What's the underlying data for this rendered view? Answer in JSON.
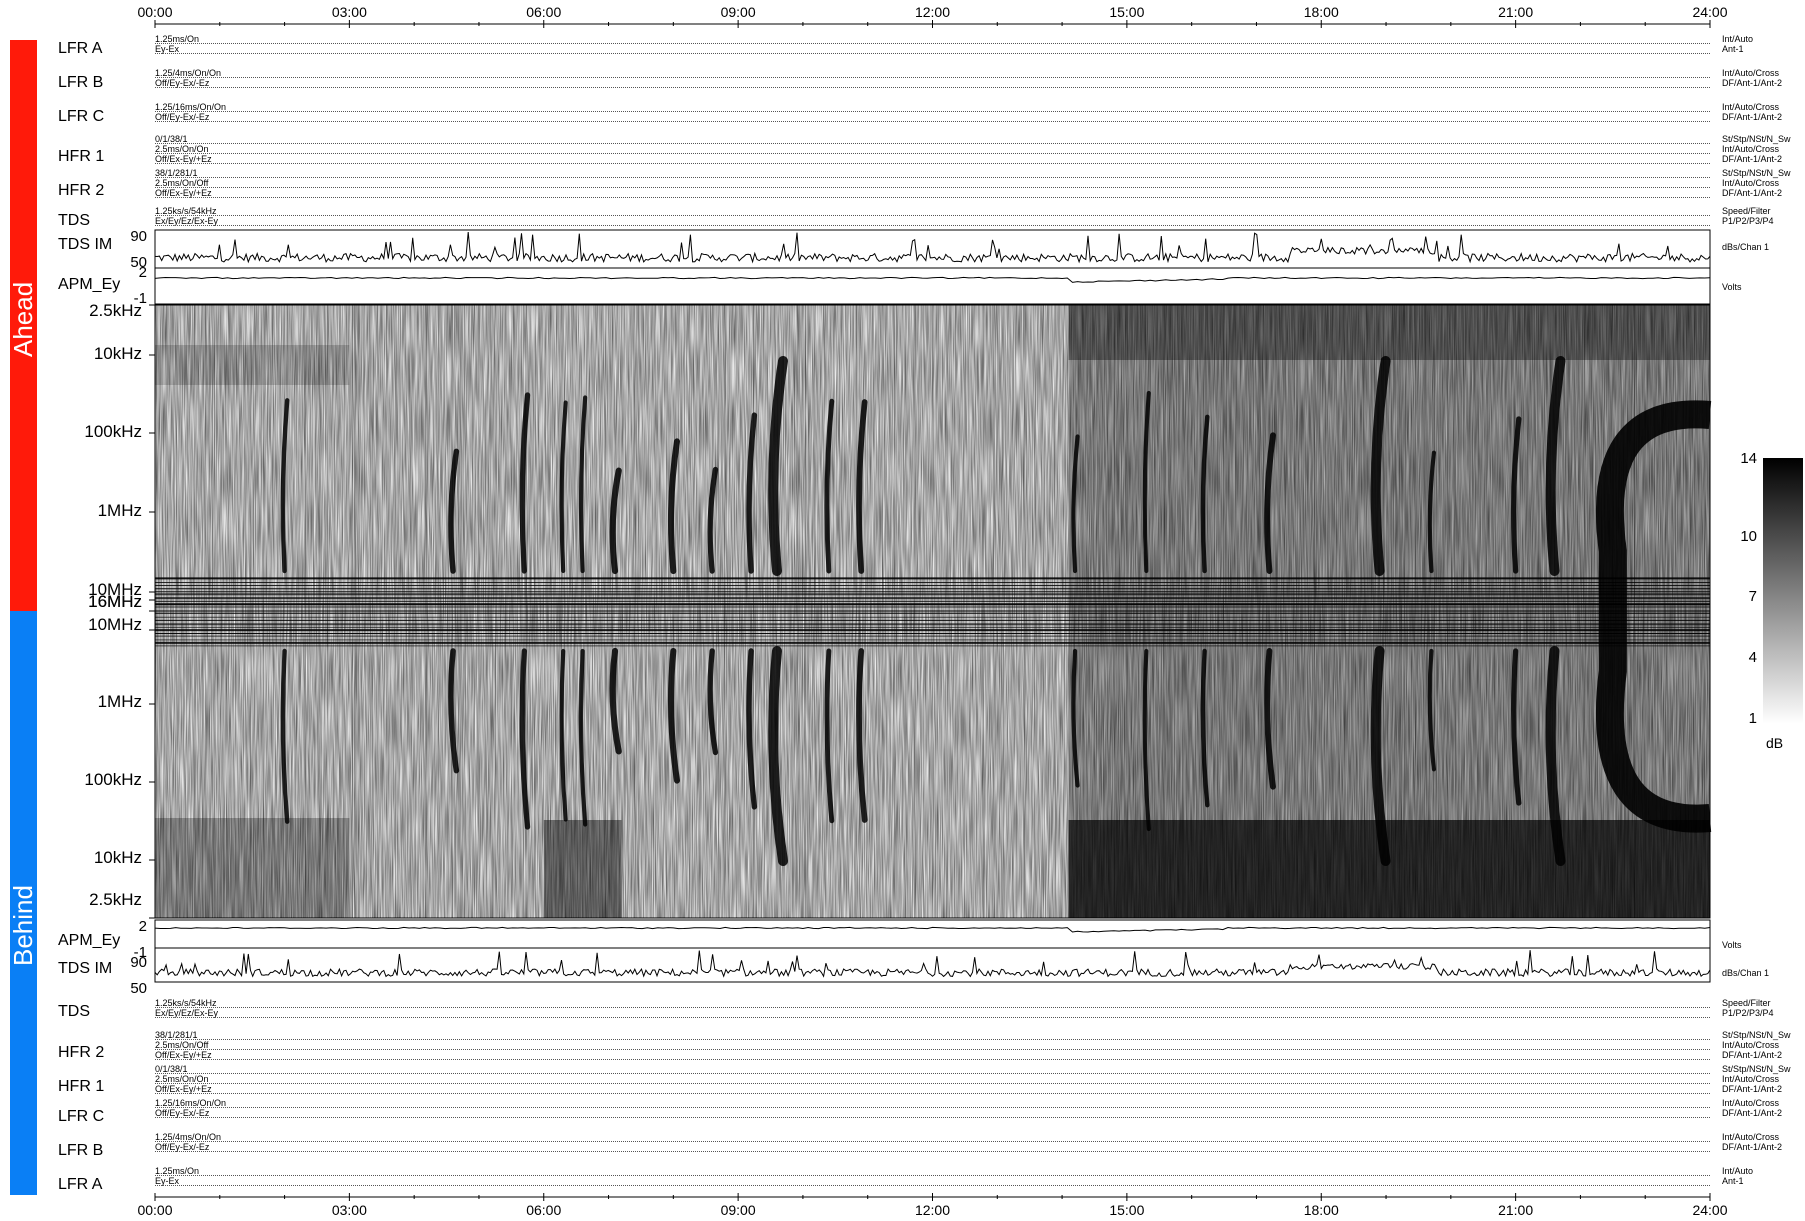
{
  "chart_data": {
    "type": "heatmap",
    "title": "",
    "x_tick_labels": [
      "00:00",
      "03:00",
      "06:00",
      "09:00",
      "12:00",
      "15:00",
      "18:00",
      "21:00",
      "24:00"
    ],
    "x_range_hours": [
      0,
      24
    ],
    "sections": [
      {
        "name": "Ahead",
        "color": "#ff1a0a"
      },
      {
        "name": "Behind",
        "color": "#0a7ff5"
      }
    ],
    "ahead_rows": [
      {
        "name": "LFR A",
        "left": [
          "1.25ms/On",
          "Ey-Ex"
        ],
        "right": [
          "Int/Auto",
          "Ant-1"
        ]
      },
      {
        "name": "LFR B",
        "left": [
          "1.25/4ms/On/On",
          "Off/Ey-Ex/-Ez"
        ],
        "right": [
          "Int/Auto/Cross",
          "DF/Ant-1/Ant-2"
        ]
      },
      {
        "name": "LFR C",
        "left": [
          "1.25/16ms/On/On",
          "Off/Ey-Ex/-Ez"
        ],
        "right": [
          "Int/Auto/Cross",
          "DF/Ant-1/Ant-2"
        ]
      },
      {
        "name": "HFR 1",
        "left": [
          "0/1/38/1",
          "2.5ms/On/On",
          "Off/Ex-Ey/+Ez"
        ],
        "right": [
          "St/Stp/NSt/N_Sw",
          "Int/Auto/Cross",
          "DF/Ant-1/Ant-2"
        ]
      },
      {
        "name": "HFR 2",
        "left": [
          "38/1/281/1",
          "2.5ms/On/Off",
          "Off/Ex-Ey/+Ez"
        ],
        "right": [
          "St/Stp/NSt/N_Sw",
          "Int/Auto/Cross",
          "DF/Ant-1/Ant-2"
        ]
      },
      {
        "name": "TDS",
        "left": [
          "1.25ks/s/54kHz",
          "Ex/Ey/Ez/Ex-Ey"
        ],
        "right": [
          "Speed/Filter",
          "P1/P2/P3/P4"
        ]
      }
    ],
    "behind_rows": [
      {
        "name": "TDS",
        "left": [
          "1.25ks/s/54kHz",
          "Ex/Ey/Ez/Ex-Ey"
        ],
        "right": [
          "Speed/Filter",
          "P1/P2/P3/P4"
        ]
      },
      {
        "name": "HFR 2",
        "left": [
          "38/1/281/1",
          "2.5ms/On/Off",
          "Off/Ex-Ey/+Ez"
        ],
        "right": [
          "St/Stp/NSt/N_Sw",
          "Int/Auto/Cross",
          "DF/Ant-1/Ant-2"
        ]
      },
      {
        "name": "HFR 1",
        "left": [
          "0/1/38/1",
          "2.5ms/On/On",
          "Off/Ex-Ey/+Ez"
        ],
        "right": [
          "St/Stp/NSt/N_Sw",
          "Int/Auto/Cross",
          "DF/Ant-1/Ant-2"
        ]
      },
      {
        "name": "LFR C",
        "left": [
          "1.25/16ms/On/On",
          "Off/Ey-Ex/-Ez"
        ],
        "right": [
          "Int/Auto/Cross",
          "DF/Ant-1/Ant-2"
        ]
      },
      {
        "name": "LFR B",
        "left": [
          "1.25/4ms/On/On",
          "Off/Ey-Ex/-Ez"
        ],
        "right": [
          "Int/Auto/Cross",
          "DF/Ant-1/Ant-2"
        ]
      },
      {
        "name": "LFR A",
        "left": [
          "1.25ms/On",
          "Ey-Ex"
        ],
        "right": [
          "Int/Auto",
          "Ant-1"
        ]
      }
    ],
    "tds_im": {
      "name": "TDS IM",
      "y_ticks": [
        "90",
        "50"
      ],
      "unit": "dBs/Chan 1"
    },
    "apm": {
      "name": "APM_Ey",
      "y_ticks": [
        "2",
        "-1"
      ],
      "unit": "Volts"
    },
    "frequency_ticks_ahead": [
      "2.5kHz",
      "10kHz",
      "100kHz",
      "1MHz",
      "10MHz",
      "16MHz"
    ],
    "frequency_ticks_behind": [
      "16MHz",
      "10MHz",
      "1MHz",
      "100kHz",
      "10kHz",
      "2.5kHz"
    ],
    "colorbar": {
      "ticks": [
        "14",
        "10",
        "7",
        "4",
        "1"
      ],
      "unit": "dB",
      "range": [
        1,
        14
      ]
    },
    "bursts_hours": [
      2.0,
      4.6,
      5.7,
      6.3,
      6.6,
      7.1,
      8.0,
      8.6,
      9.2,
      9.6,
      10.4,
      10.9,
      14.2,
      15.3,
      16.2,
      17.2,
      18.9,
      19.7,
      21.0,
      21.6
    ],
    "disturbed_interval_hours": [
      14.1,
      24.0
    ]
  }
}
